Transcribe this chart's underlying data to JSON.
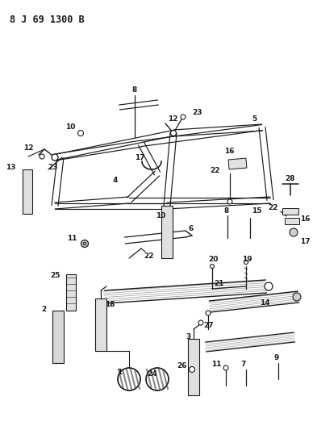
{
  "title": "8 J 69 1300 B",
  "bg_color": "#ffffff",
  "line_color": "#1a1a1a",
  "title_fontsize": 8.5,
  "label_fontsize": 6.5,
  "figsize": [
    3.93,
    5.33
  ],
  "dpi": 100
}
